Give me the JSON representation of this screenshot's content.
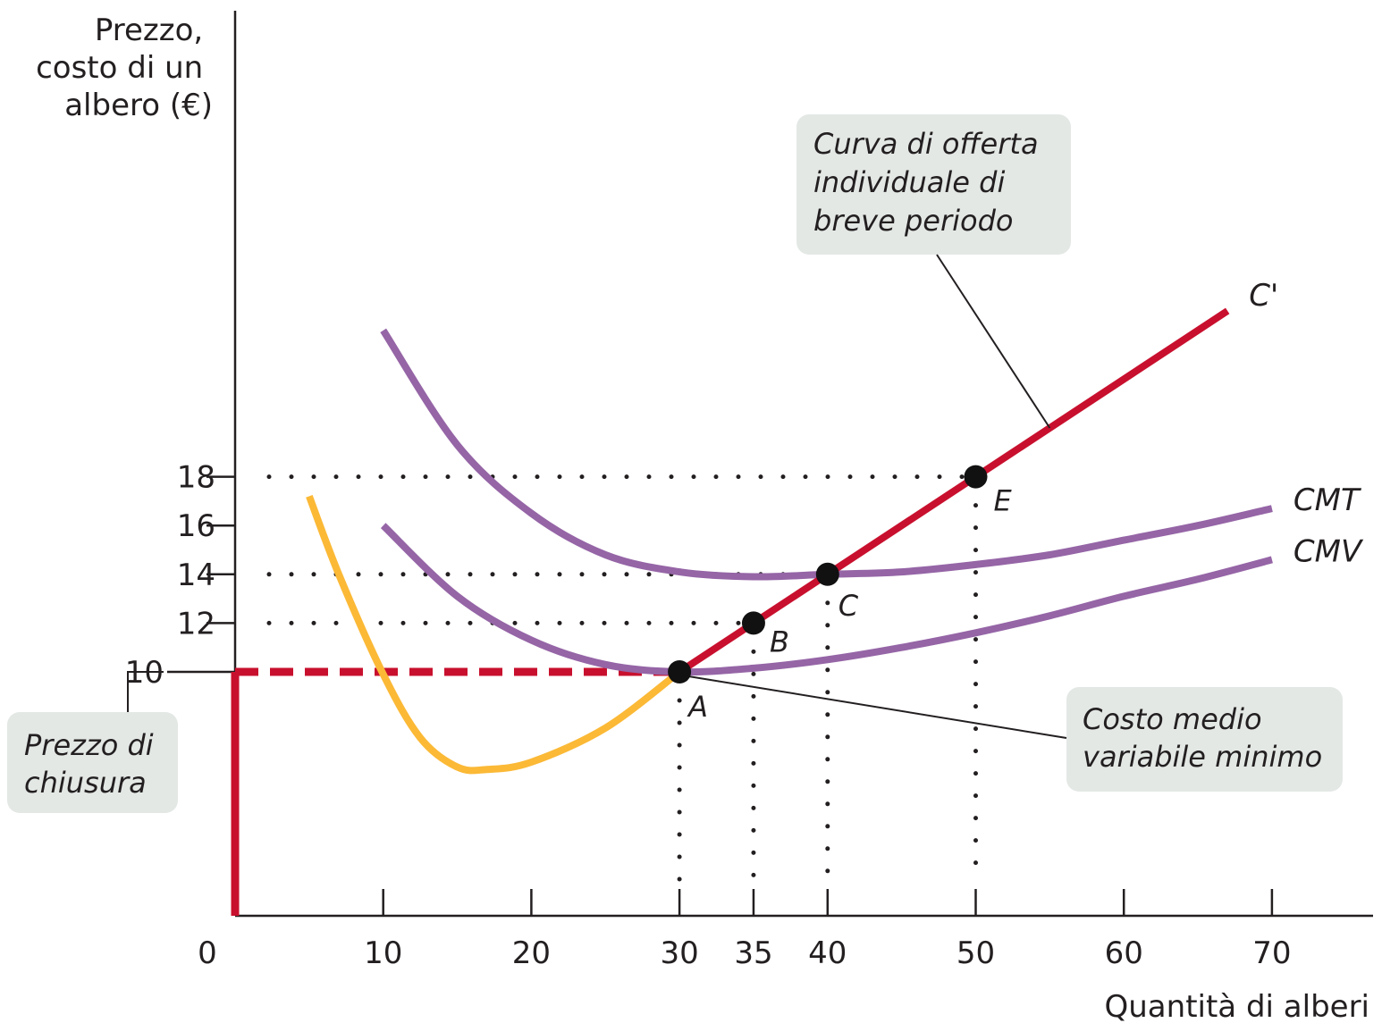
{
  "chart_data": {
    "type": "line",
    "ylabel_lines": [
      "Prezzo,",
      "costo di un",
      "albero (€)"
    ],
    "xlabel": "Quantità di alberi",
    "x_origin_label": "0",
    "xlim": [
      0,
      70
    ],
    "ylim": [
      0,
      28
    ],
    "x_ticks": [
      10,
      20,
      30,
      35,
      40,
      50,
      60,
      70
    ],
    "x_tick_labels": [
      "10",
      "20",
      "30",
      "35",
      "40",
      "50",
      "60",
      "70"
    ],
    "y_ticks": [
      10,
      12,
      14,
      16,
      18
    ],
    "y_tick_labels": [
      "10",
      "12",
      "14",
      "16",
      "18"
    ],
    "colors": {
      "cm_curves": "#9565a6",
      "cmg_curve": "#fbb936",
      "supply": "#c8102e",
      "callout": "#e3e8e5",
      "text": "#231f20"
    },
    "series": [
      {
        "name": "CMT",
        "color": "#9565a6",
        "points": [
          [
            10,
            24
          ],
          [
            15,
            19.3
          ],
          [
            20,
            16.5
          ],
          [
            25,
            14.8
          ],
          [
            30,
            14.1
          ],
          [
            35,
            13.9
          ],
          [
            40,
            14.0
          ],
          [
            45,
            14.1
          ],
          [
            50,
            14.4
          ],
          [
            55,
            14.8
          ],
          [
            60,
            15.4
          ],
          [
            65,
            16.0
          ],
          [
            70,
            16.7
          ]
        ]
      },
      {
        "name": "CMV",
        "color": "#9565a6",
        "points": [
          [
            10,
            16
          ],
          [
            15,
            13.1
          ],
          [
            20,
            11.3
          ],
          [
            25,
            10.3
          ],
          [
            30,
            10.0
          ],
          [
            35,
            10.15
          ],
          [
            40,
            10.5
          ],
          [
            45,
            11.0
          ],
          [
            50,
            11.6
          ],
          [
            55,
            12.3
          ],
          [
            60,
            13.1
          ],
          [
            65,
            13.8
          ],
          [
            70,
            14.6
          ]
        ]
      },
      {
        "name": "",
        "color": "#fbb936",
        "points": [
          [
            5,
            17.2
          ],
          [
            7,
            14.0
          ],
          [
            10,
            9.9
          ],
          [
            12.5,
            7.3
          ],
          [
            15,
            6.1
          ],
          [
            17,
            6.0
          ],
          [
            20,
            6.3
          ],
          [
            25,
            7.7
          ],
          [
            30,
            10.0
          ]
        ]
      },
      {
        "name": "C'",
        "color": "#c8102e",
        "points": [
          [
            30,
            10
          ],
          [
            67,
            24.8
          ]
        ]
      }
    ],
    "shutdown": {
      "price": 10,
      "vertical_from": [
        0,
        10
      ],
      "dashed_to_x": 30
    },
    "points": [
      {
        "label": "A",
        "x": 30,
        "y": 10
      },
      {
        "label": "B",
        "x": 35,
        "y": 12
      },
      {
        "label": "C",
        "x": 40,
        "y": 14
      },
      {
        "label": "E",
        "x": 50,
        "y": 18
      }
    ],
    "guides": [
      {
        "x": 50,
        "y": 18
      },
      {
        "x": 40,
        "y": 14
      },
      {
        "x": 35,
        "y": 12
      },
      {
        "x": 30,
        "y": 10
      }
    ],
    "annotations": [
      {
        "id": "supply",
        "lines": [
          "Curva di offerta",
          "individuale di",
          "breve periodo"
        ],
        "pointer": [
          55,
          20
        ]
      },
      {
        "id": "min-avc",
        "lines": [
          "Costo medio",
          "variabile minimo"
        ],
        "pointer": [
          30,
          10
        ]
      },
      {
        "id": "shutdown",
        "lines": [
          "Prezzo di",
          "chiusura"
        ],
        "pointer": [
          0,
          10
        ]
      }
    ]
  }
}
